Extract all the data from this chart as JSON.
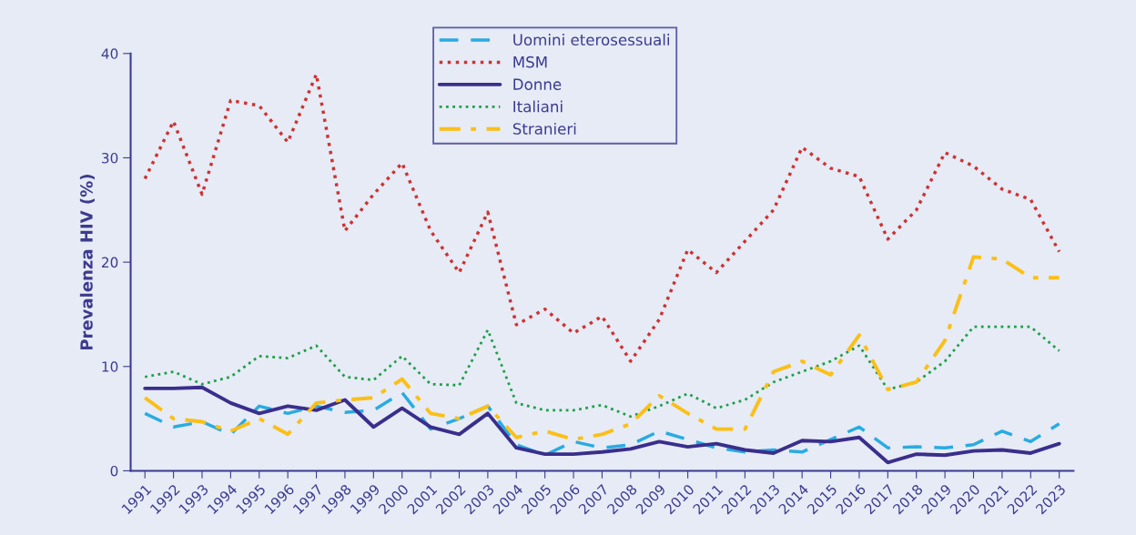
{
  "chart_data": {
    "type": "line",
    "ylabel": "Prevalenza HIV (%)",
    "categories": [
      "1991",
      "1992",
      "1993",
      "1994",
      "1995",
      "1996",
      "1997",
      "1998",
      "1999",
      "2000",
      "2001",
      "2002",
      "2003",
      "2004",
      "2005",
      "2006",
      "2007",
      "2008",
      "2009",
      "2010",
      "2011",
      "2012",
      "2013",
      "2014",
      "2015",
      "2016",
      "2017",
      "2018",
      "2019",
      "2020",
      "2021",
      "2022",
      "2023"
    ],
    "ylim": [
      0,
      40
    ],
    "yticks": [
      0,
      10,
      20,
      30,
      40
    ],
    "grid": false,
    "legend": "top",
    "marker": "none",
    "series": [
      {
        "name": "Uomini eterosessuali",
        "color": "#29abe2",
        "line_style": "dashed",
        "values": [
          5.5,
          4.2,
          4.7,
          3.5,
          6.2,
          5.5,
          6.2,
          5.6,
          5.8,
          7.5,
          4.0,
          5.0,
          6.2,
          2.5,
          1.5,
          2.8,
          2.2,
          2.5,
          3.8,
          3.0,
          2.2,
          1.8,
          2.0,
          1.8,
          3.0,
          4.2,
          2.2,
          2.3,
          2.2,
          2.5,
          3.8,
          2.8,
          4.5
        ]
      },
      {
        "name": "MSM",
        "color": "#cc3333",
        "line_style": "dotted",
        "values": [
          28,
          33.5,
          26.5,
          35.5,
          35,
          31.5,
          38,
          23,
          26.5,
          29.5,
          23,
          19,
          24.8,
          14,
          15.5,
          13.2,
          14.8,
          10.5,
          14.5,
          21.2,
          19,
          22,
          25,
          31,
          29,
          28.2,
          22.2,
          25,
          30.5,
          29.2,
          27,
          26,
          21
        ]
      },
      {
        "name": "Donne",
        "color": "#3a2e8c",
        "line_style": "solid",
        "values": [
          7.9,
          7.9,
          8.0,
          6.5,
          5.5,
          6.2,
          5.8,
          6.8,
          4.2,
          6.0,
          4.2,
          3.5,
          5.5,
          2.2,
          1.6,
          1.6,
          1.8,
          2.1,
          2.8,
          2.3,
          2.6,
          2.0,
          1.7,
          2.9,
          2.8,
          3.2,
          0.8,
          1.6,
          1.5,
          1.9,
          2.0,
          1.7,
          2.6
        ]
      },
      {
        "name": "Italiani",
        "color": "#1f9e4a",
        "line_style": "dotted",
        "values": [
          9,
          9.5,
          8.3,
          9,
          11,
          10.8,
          12,
          9,
          8.7,
          11,
          8.3,
          8.2,
          13.5,
          6.5,
          5.8,
          5.8,
          6.3,
          5.2,
          6.2,
          7.4,
          6.0,
          6.8,
          8.5,
          9.5,
          10.5,
          12,
          7.8,
          8.5,
          10.5,
          13.8,
          13.8,
          13.8,
          11.5
        ]
      },
      {
        "name": "Stranieri",
        "color": "#fbbf16",
        "line_style": "dashdot",
        "values": [
          7.0,
          5.0,
          4.7,
          3.8,
          5.0,
          3.5,
          6.5,
          6.8,
          7.0,
          8.8,
          5.5,
          5.0,
          6.2,
          3.2,
          3.8,
          3.0,
          3.5,
          4.5,
          7.2,
          5.5,
          4.0,
          4.0,
          9.5,
          10.5,
          9.2,
          13,
          7.8,
          8.5,
          12.5,
          20.5,
          20.3,
          18.5,
          18.5
        ]
      }
    ]
  }
}
